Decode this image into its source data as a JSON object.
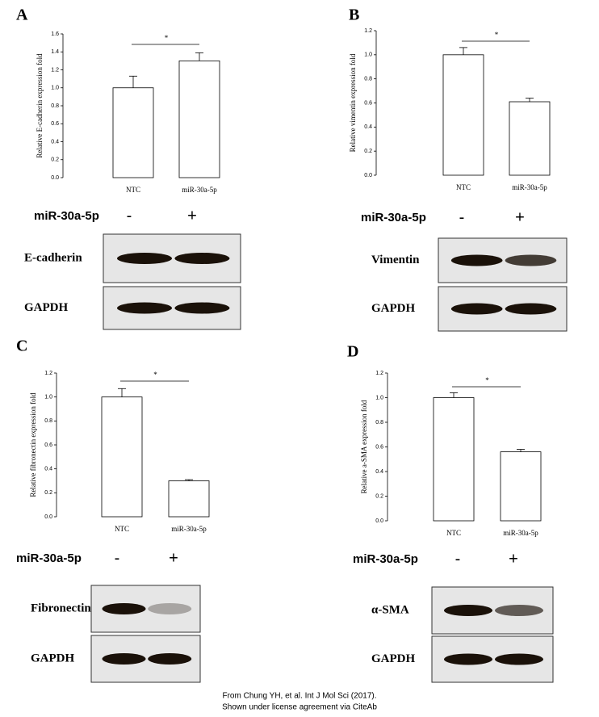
{
  "chart_data": [
    {
      "type": "bar",
      "title": "A",
      "y_label": "Relative E-cadherin expression fold",
      "categories": [
        "NTC",
        "miR-30a-5p"
      ],
      "values": [
        1.0,
        1.3
      ],
      "errors": [
        0.13,
        0.09
      ],
      "color": "#ffffff",
      "ylim": [
        0,
        1.6
      ],
      "yticks": [
        {
          "value": 0,
          "label": "0.0"
        },
        0.2,
        0.4,
        0.6,
        0.8,
        {
          "value": 1,
          "label": "1.0"
        },
        1.2,
        1.4,
        1.6
      ],
      "significance": "*"
    },
    {
      "type": "bar",
      "title": "B",
      "y_label": "Relative vimentin expression fold",
      "categories": [
        "NTC",
        "miR-30a-5p"
      ],
      "values": [
        1.0,
        0.61
      ],
      "errors": [
        0.06,
        0.03
      ],
      "color": "#ffffff",
      "ylim": [
        0,
        1.2
      ],
      "yticks": [
        {
          "value": 0,
          "label": "0.0"
        },
        0.2,
        0.4,
        0.6,
        0.8,
        {
          "value": 1,
          "label": "1.0"
        },
        1.2
      ],
      "significance": "*"
    },
    {
      "type": "bar",
      "title": "C",
      "y_label": "Relative fibronectin expression fold",
      "categories": [
        "NTC",
        "miR-30a-5p"
      ],
      "values": [
        1.0,
        0.3
      ],
      "errors": [
        0.07,
        0.01
      ],
      "color": "#ffffff",
      "ylim": [
        0,
        1.2
      ],
      "yticks": [
        {
          "value": 0,
          "label": "0.0"
        },
        0.2,
        0.4,
        0.6,
        0.8,
        {
          "value": 1,
          "label": "1.0"
        },
        1.2
      ],
      "significance": "*"
    },
    {
      "type": "bar",
      "title": "D",
      "y_label": "Relative a-SMA expression fold",
      "categories": [
        "NTC",
        "miR-30a-5p"
      ],
      "values": [
        1.0,
        0.56
      ],
      "errors": [
        0.04,
        0.02
      ],
      "color": "#ffffff",
      "ylim": [
        0,
        1.2
      ],
      "yticks": [
        {
          "value": 0,
          "label": "0.0"
        },
        0.2,
        0.4,
        0.6,
        0.8,
        {
          "value": 1,
          "label": "1.0"
        },
        1.2
      ],
      "significance": "*"
    }
  ],
  "blots": [
    {
      "row_label": "miR-30a-5p",
      "minus": "-",
      "plus": "+",
      "bands": [
        "E-cadherin",
        "GAPDH"
      ]
    },
    {
      "row_label": "miR-30a-5p",
      "minus": "-",
      "plus": "+",
      "bands": [
        "Vimentin",
        "GAPDH"
      ]
    },
    {
      "row_label": "miR-30a-5p",
      "minus": "-",
      "plus": "+",
      "bands": [
        "Fibronectin",
        "GAPDH"
      ]
    },
    {
      "row_label": "miR-30a-5p",
      "minus": "-",
      "plus": "+",
      "bands": [
        "α-SMA",
        "GAPDH"
      ]
    }
  ],
  "caption": [
    "From Chung YH, et al. Int J Mol Sci (2017).",
    "Shown under license agreement via CiteAb"
  ]
}
